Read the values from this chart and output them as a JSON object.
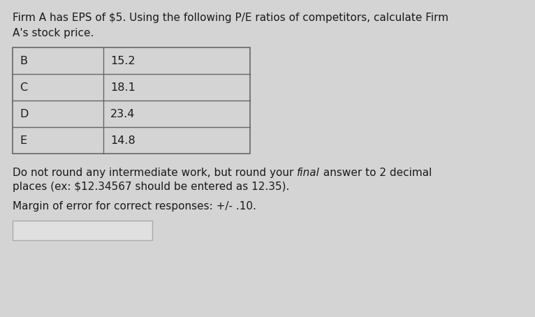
{
  "title_line1": "Firm A has EPS of $5. Using the following P/E ratios of competitors, calculate Firm",
  "title_line2": "A's stock price.",
  "table_firms": [
    "B",
    "C",
    "D",
    "E"
  ],
  "table_pe": [
    "15.2",
    "18.1",
    "23.4",
    "14.8"
  ],
  "body_text1_pre": "Do not round any intermediate work, but round your ",
  "body_text1_italic": "final",
  "body_text1_post": " answer to 2 decimal",
  "body_text2": "places (ex: $12.34567 should be entered as 12.35).",
  "body_text3": "Margin of error for correct responses: +/- .10.",
  "bg_color": "#d4d4d4",
  "table_bg": "#d4d4d4",
  "input_box_color": "#e0e0e0",
  "text_color": "#1a1a1a",
  "table_border_color": "#666666",
  "font_size_body": 11.0,
  "font_size_table": 11.5
}
